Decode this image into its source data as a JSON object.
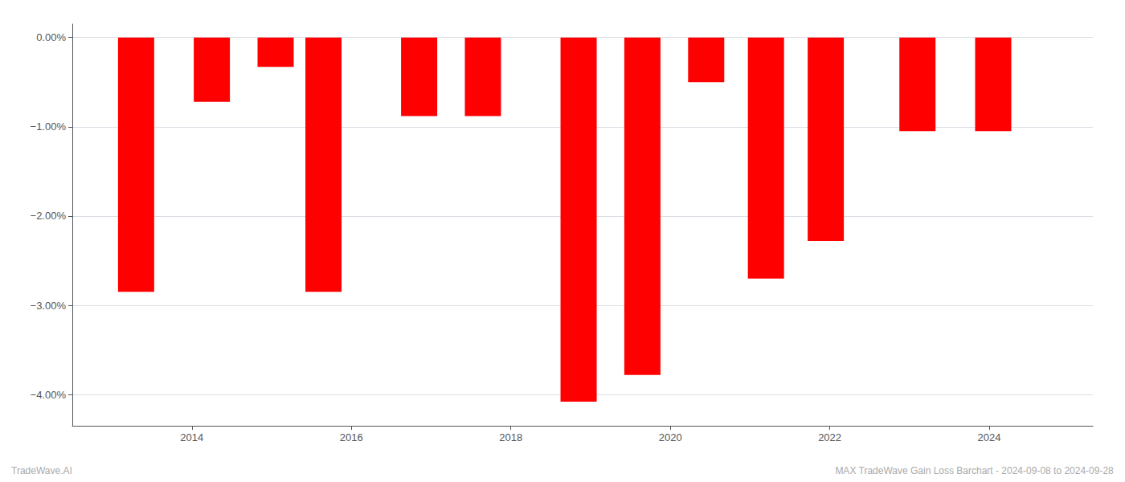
{
  "chart_data": {
    "type": "bar",
    "x": [
      2013.3,
      2014.25,
      2015.05,
      2015.65,
      2016.85,
      2017.65,
      2018.85,
      2019.65,
      2020.45,
      2021.2,
      2021.95,
      2023.1,
      2024.05
    ],
    "values": [
      -2.85,
      -0.72,
      -0.33,
      -2.85,
      -0.88,
      -0.88,
      -4.08,
      -3.78,
      -0.5,
      -2.7,
      -2.28,
      -1.05,
      -1.05
    ],
    "color": "#ff0000",
    "xlim": [
      2012.5,
      2025.3
    ],
    "xticks": [
      2014,
      2016,
      2018,
      2020,
      2022,
      2024
    ],
    "ylim": [
      -4.35,
      0.15
    ],
    "yticks": [
      {
        "value": 0.0,
        "label": "0.00%"
      },
      {
        "value": -1.0,
        "label": "−1.00%"
      },
      {
        "value": -2.0,
        "label": "−2.00%"
      },
      {
        "value": -3.0,
        "label": "−3.00%"
      },
      {
        "value": -4.0,
        "label": "−4.00%"
      }
    ],
    "grid": true,
    "annotations": [
      "TradeWave.AI",
      "MAX TradeWave Gain Loss Barchart - 2024-09-08 to 2024-09-28"
    ]
  }
}
